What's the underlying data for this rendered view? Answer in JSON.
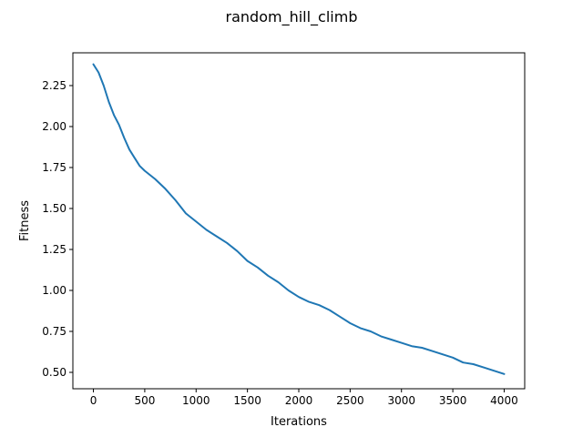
{
  "chart_data": {
    "type": "line",
    "title": "random_hill_climb",
    "xlabel": "Iterations",
    "ylabel": "Fitness",
    "xlim": [
      -200,
      4200
    ],
    "ylim": [
      0.4,
      2.45
    ],
    "xticks": [
      0,
      500,
      1000,
      1500,
      2000,
      2500,
      3000,
      3500,
      4000
    ],
    "yticks": [
      0.5,
      0.75,
      1.0,
      1.25,
      1.5,
      1.75,
      2.0,
      2.25
    ],
    "ytick_labels": [
      "0.50",
      "0.75",
      "1.00",
      "1.25",
      "1.50",
      "1.75",
      "2.00",
      "2.25"
    ],
    "grid": false,
    "colors": {
      "series": "#1f77b4"
    },
    "series": [
      {
        "x": [
          0,
          50,
          100,
          150,
          200,
          250,
          300,
          350,
          400,
          450,
          500,
          600,
          700,
          800,
          900,
          1000,
          1100,
          1200,
          1300,
          1400,
          1500,
          1600,
          1700,
          1800,
          1900,
          2000,
          2100,
          2200,
          2300,
          2400,
          2500,
          2600,
          2700,
          2800,
          2900,
          3000,
          3100,
          3200,
          3300,
          3400,
          3500,
          3600,
          3700,
          3800,
          3900,
          4000
        ],
        "values": [
          2.38,
          2.33,
          2.25,
          2.15,
          2.07,
          2.01,
          1.93,
          1.86,
          1.81,
          1.76,
          1.73,
          1.68,
          1.62,
          1.55,
          1.47,
          1.42,
          1.37,
          1.33,
          1.29,
          1.24,
          1.18,
          1.14,
          1.09,
          1.05,
          1.0,
          0.96,
          0.93,
          0.91,
          0.88,
          0.84,
          0.8,
          0.77,
          0.75,
          0.72,
          0.7,
          0.68,
          0.66,
          0.65,
          0.63,
          0.61,
          0.59,
          0.56,
          0.55,
          0.53,
          0.51,
          0.49
        ]
      }
    ]
  }
}
